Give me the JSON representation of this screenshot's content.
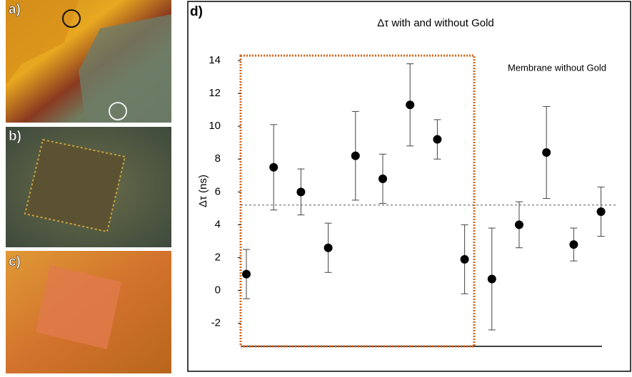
{
  "images": [
    {
      "label": "a)"
    },
    {
      "label": "b)"
    },
    {
      "label": "c)"
    }
  ],
  "chart_data": {
    "type": "scatter",
    "panel_label": "d)",
    "title": "Δτ with and without Gold",
    "y_label": "Δτ (ns)",
    "annotation": "Membrane without Gold",
    "categories": [
      null,
      null,
      null,
      null,
      null,
      null,
      null,
      null,
      null,
      null,
      null,
      null,
      null,
      null
    ],
    "series": [
      {
        "color": "#000000",
        "values": [
          1.0,
          7.5,
          6.0,
          2.6,
          8.2,
          6.8,
          11.3,
          9.2,
          1.9,
          0.7,
          4.0,
          8.4,
          2.8,
          4.8
        ],
        "errors": [
          1.5,
          2.6,
          1.4,
          1.5,
          2.7,
          1.5,
          2.5,
          1.2,
          2.1,
          3.1,
          1.4,
          2.8,
          1.0,
          1.5
        ]
      }
    ],
    "reference_line": 5.2,
    "ylim": [
      -3.4,
      14.3
    ],
    "yticks": [
      -2,
      0,
      2,
      4,
      6,
      8,
      10,
      12,
      14
    ],
    "grid": false
  }
}
